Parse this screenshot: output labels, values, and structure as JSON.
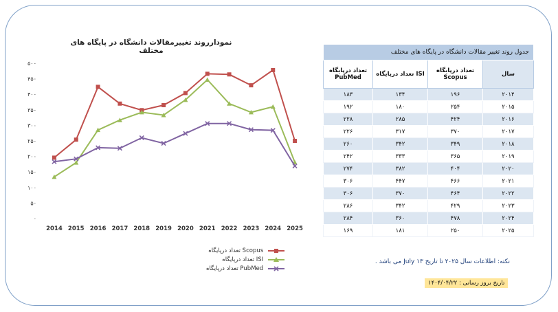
{
  "chart_data": {
    "type": "line",
    "title": "نمودارروند تغییرمقالات دانشگاه در پایگاه های مختلف",
    "x": [
      "2014",
      "2015",
      "2016",
      "2017",
      "2018",
      "2019",
      "2020",
      "2021",
      "2022",
      "2023",
      "2024",
      "2025"
    ],
    "y_ticks": [
      "۰",
      "۵۰",
      "۱۰۰",
      "۱۵۰",
      "۲۰۰",
      "۲۵۰",
      "۳۰۰",
      "۳۵۰",
      "۴۰۰",
      "۴۵۰",
      "۵۰۰"
    ],
    "ylim": [
      0,
      500
    ],
    "grid": false,
    "legend_position": "bottom",
    "series": [
      {
        "name": "تعداد درپایگاه Scopus",
        "color": "#c0504d",
        "marker": "square",
        "values": [
          196,
          254,
          424,
          370,
          349,
          365,
          404,
          466,
          464,
          429,
          478,
          250
        ]
      },
      {
        "name": "تعداد درپایگاه ISI",
        "color": "#9bbb59",
        "marker": "triangle",
        "values": [
          134,
          180,
          285,
          317,
          342,
          333,
          382,
          447,
          370,
          342,
          360,
          181
        ]
      },
      {
        "name": "تعداد درپایگاه PubMed",
        "color": "#8064a2",
        "marker": "x",
        "values": [
          183,
          192,
          228,
          226,
          260,
          242,
          274,
          306,
          306,
          286,
          284,
          169
        ]
      }
    ]
  },
  "table": {
    "caption": "جدول روند تغییر مقالات دانشگاه در پایگاه های مختلف",
    "headers": {
      "year": "سال",
      "scopus": "تعداد درپایگاه Scopus",
      "isi": "تعداد درپایگاه ISI",
      "pubmed": "تعداد درپایگاه PubMed"
    },
    "rows": [
      {
        "year": "۲۰۱۴",
        "scopus": "۱۹۶",
        "isi": "۱۳۴",
        "pubmed": "۱۸۳"
      },
      {
        "year": "۲۰۱۵",
        "scopus": "۲۵۴",
        "isi": "۱۸۰",
        "pubmed": "۱۹۲"
      },
      {
        "year": "۲۰۱۶",
        "scopus": "۴۲۴",
        "isi": "۲۸۵",
        "pubmed": "۲۲۸"
      },
      {
        "year": "۲۰۱۷",
        "scopus": "۳۷۰",
        "isi": "۳۱۷",
        "pubmed": "۲۲۶"
      },
      {
        "year": "۲۰۱۸",
        "scopus": "۳۴۹",
        "isi": "۳۴۲",
        "pubmed": "۲۶۰"
      },
      {
        "year": "۲۰۱۹",
        "scopus": "۳۶۵",
        "isi": "۳۳۳",
        "pubmed": "۲۴۲"
      },
      {
        "year": "۲۰۲۰",
        "scopus": "۴۰۴",
        "isi": "۳۸۲",
        "pubmed": "۲۷۴"
      },
      {
        "year": "۲۰۲۱",
        "scopus": "۴۶۶",
        "isi": "۴۴۷",
        "pubmed": "۳۰۶"
      },
      {
        "year": "۲۰۲۲",
        "scopus": "۴۶۴",
        "isi": "۳۷۰",
        "pubmed": "۳۰۶"
      },
      {
        "year": "۲۰۲۳",
        "scopus": "۴۲۹",
        "isi": "۳۴۲",
        "pubmed": "۲۸۶"
      },
      {
        "year": "۲۰۲۴",
        "scopus": "۴۷۸",
        "isi": "۳۶۰",
        "pubmed": "۲۸۴"
      },
      {
        "year": "۲۰۲۵",
        "scopus": "۲۵۰",
        "isi": "۱۸۱",
        "pubmed": "۱۶۹"
      }
    ]
  },
  "note": "نکته: اطلاعات سال ۲۰۲۵ تا تاریخ ۱۳ July می باشد .",
  "update_date": "تاریخ بروز رسانی : ۱۴۰۴/۰۴/۲۲"
}
